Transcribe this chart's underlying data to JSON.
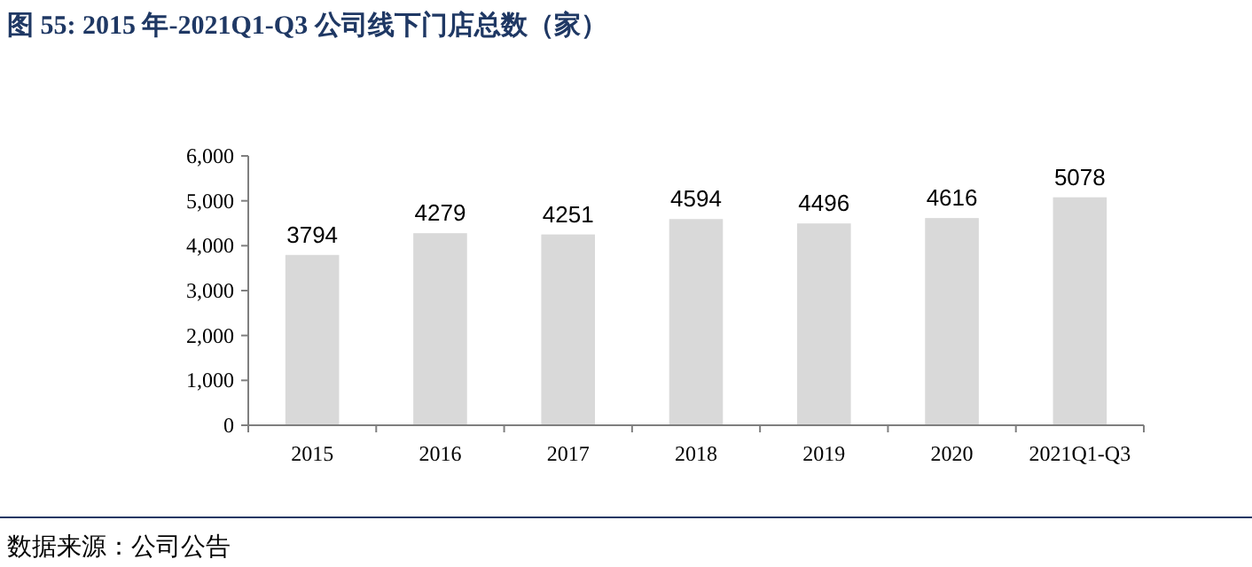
{
  "chart_data": {
    "type": "bar",
    "title": "图 55:  2015 年-2021Q1-Q3 公司线下门店总数（家）",
    "categories": [
      "2015",
      "2016",
      "2017",
      "2018",
      "2019",
      "2020",
      "2021Q1-Q3"
    ],
    "values": [
      3794,
      4279,
      4251,
      4594,
      4496,
      4616,
      5078
    ],
    "color": "#d9d9d9",
    "ylim": [
      0,
      6000
    ],
    "yticks": [
      0,
      {
        "value": 1000,
        "label": "1,000"
      },
      {
        "value": 2000,
        "label": "2,000"
      },
      {
        "value": 3000,
        "label": "3,000"
      },
      {
        "value": 4000,
        "label": "4,000"
      },
      {
        "value": 5000,
        "label": "5,000"
      },
      {
        "value": 6000,
        "label": "6,000"
      }
    ],
    "data_labels": true,
    "annotations": [
      "数据来源：公司公告"
    ]
  }
}
